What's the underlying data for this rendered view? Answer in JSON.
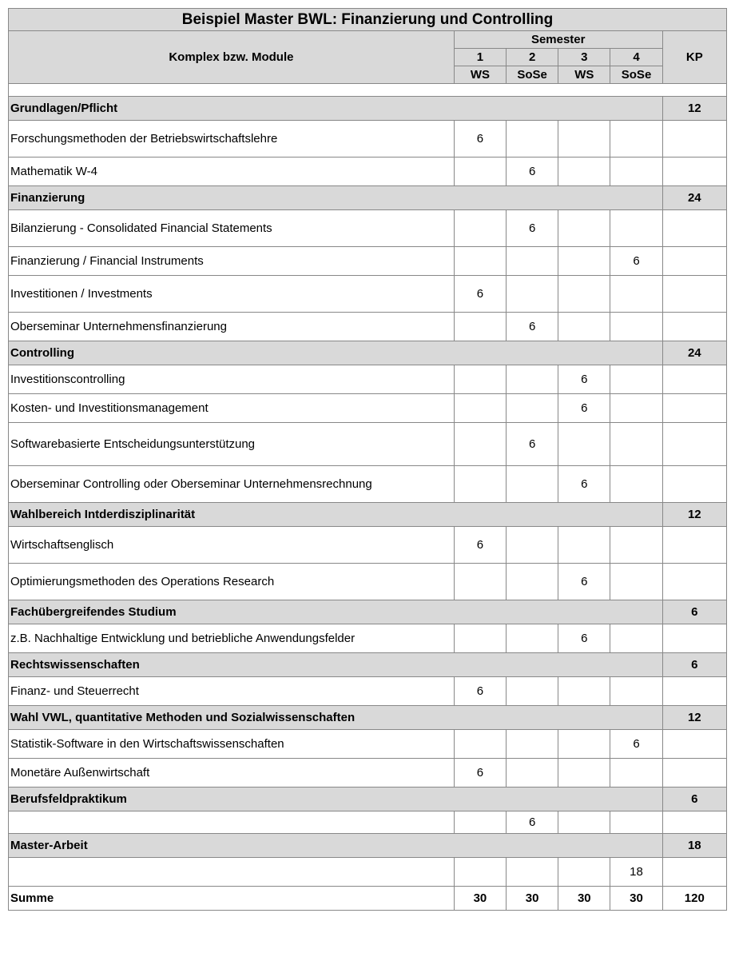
{
  "title": "Beispiel Master BWL: Finanzierung und Controlling",
  "header": {
    "col_modules": "Komplex bzw. Module",
    "col_semester": "Semester",
    "col_kp": "KP",
    "sem_numbers": [
      "1",
      "2",
      "3",
      "4"
    ],
    "sem_terms": [
      "WS",
      "SoSe",
      "WS",
      "SoSe"
    ]
  },
  "columns": {
    "label_width": 556,
    "sem_width": 65,
    "kp_width": 80
  },
  "colors": {
    "header_bg": "#d9d9d9",
    "border": "#888888",
    "background": "#ffffff"
  },
  "fonts": {
    "title_size": 19,
    "header_size": 15,
    "body_size": 15
  },
  "body": [
    {
      "type": "spacer"
    },
    {
      "type": "section",
      "label": "Grundlagen/Pflicht",
      "kp": "12"
    },
    {
      "type": "row",
      "label": "Forschungsmethoden der Betriebswirtschaftslehre",
      "s": [
        "6",
        "",
        "",
        ""
      ],
      "h": "h46"
    },
    {
      "type": "row",
      "label": "Mathematik W-4",
      "s": [
        "",
        "6",
        "",
        ""
      ],
      "h": "h36"
    },
    {
      "type": "section",
      "label": "Finanzierung",
      "kp": "24"
    },
    {
      "type": "row",
      "label": "Bilanzierung - Consolidated Financial Statements",
      "s": [
        "",
        "6",
        "",
        ""
      ],
      "h": "h46"
    },
    {
      "type": "row",
      "label": "Finanzierung / Financial Instruments",
      "s": [
        "",
        "",
        "",
        "6"
      ],
      "h": "h36"
    },
    {
      "type": "row",
      "label": "Investitionen / Investments",
      "s": [
        "6",
        "",
        "",
        ""
      ],
      "h": "h46"
    },
    {
      "type": "row",
      "label": "Oberseminar Unternehmensfinanzierung",
      "s": [
        "",
        "6",
        "",
        ""
      ],
      "h": "h36"
    },
    {
      "type": "section",
      "label": "Controlling",
      "kp": "24"
    },
    {
      "type": "row",
      "label": "Investitionscontrolling",
      "s": [
        "",
        "",
        "6",
        ""
      ],
      "h": "h36"
    },
    {
      "type": "row",
      "label": "Kosten- und Investitionsmanagement",
      "s": [
        "",
        "",
        "6",
        ""
      ],
      "h": "h36"
    },
    {
      "type": "row",
      "label": "Softwarebasierte Entscheidungsunterstützung",
      "s": [
        "",
        "6",
        "",
        ""
      ],
      "h": "h54"
    },
    {
      "type": "row",
      "label": "Oberseminar Controlling oder Oberseminar Unternehmensrechnung",
      "s": [
        "",
        "",
        "6",
        ""
      ],
      "h": "h46"
    },
    {
      "type": "section",
      "label": "Wahlbereich Intderdisziplinarität",
      "kp": "12"
    },
    {
      "type": "row",
      "label": "Wirtschaftsenglisch",
      "s": [
        "6",
        "",
        "",
        ""
      ],
      "h": "h46"
    },
    {
      "type": "row",
      "label": "Optimierungsmethoden des Operations Research",
      "s": [
        "",
        "",
        "6",
        ""
      ],
      "h": "h46"
    },
    {
      "type": "section",
      "label": "Fachübergreifendes Studium",
      "kp": "6"
    },
    {
      "type": "row",
      "label": "z.B. Nachhaltige Entwicklung und betriebliche Anwendungsfelder",
      "s": [
        "",
        "",
        "6",
        ""
      ],
      "h": "h36"
    },
    {
      "type": "section",
      "label": "Rechtswissenschaften",
      "kp": "6"
    },
    {
      "type": "row",
      "label": "Finanz- und Steuerrecht",
      "s": [
        "6",
        "",
        "",
        ""
      ],
      "h": "h36"
    },
    {
      "type": "section",
      "label": "Wahl VWL, quantitative Methoden und Sozialwissenschaften",
      "kp": "12"
    },
    {
      "type": "row",
      "label": "Statistik-Software in den Wirtschaftswissenschaften",
      "s": [
        "",
        "",
        "",
        "6"
      ],
      "h": "h36"
    },
    {
      "type": "row",
      "label": "Monetäre Außenwirtschaft",
      "s": [
        "6",
        "",
        "",
        ""
      ],
      "h": "h36"
    },
    {
      "type": "section",
      "label": "Berufsfeldpraktikum",
      "kp": "6"
    },
    {
      "type": "row",
      "label": "",
      "s": [
        "",
        "6",
        "",
        ""
      ],
      "h": "h28"
    },
    {
      "type": "section",
      "label": "Master-Arbeit",
      "kp": "18"
    },
    {
      "type": "row",
      "label": "",
      "s": [
        "",
        "",
        "",
        "18"
      ],
      "h": "h36"
    }
  ],
  "sum": {
    "label": "Summe",
    "s": [
      "30",
      "30",
      "30",
      "30"
    ],
    "kp": "120"
  }
}
